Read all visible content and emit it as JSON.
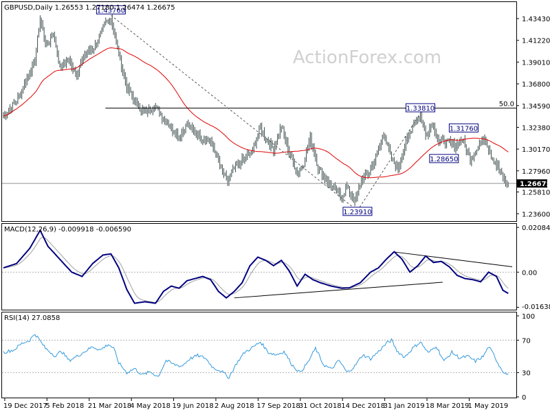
{
  "chart_data": [
    {
      "type": "ohlc",
      "panel": "price",
      "symbol_line": "GBPUSD,Daily  1.26553 1.27180 1.26474 1.26675",
      "watermark": "ActionForex.com",
      "ylim": [
        1.2292,
        1.4504
      ],
      "y_ticks": [
        "1.43430",
        "1.41220",
        "1.39010",
        "1.36800",
        "1.34590",
        "1.32380",
        "1.30170",
        "1.27960",
        "1.25810",
        "1.23600"
      ],
      "x_ticks": [
        "19 Dec 2017",
        "5 Feb 2018",
        "21 Mar 2018",
        "4 May 2018",
        "19 Jun 2018",
        "2 Aug 2018",
        "17 Sep 2018",
        "31 Oct 2018",
        "14 Dec 2018",
        "31 Jan 2019",
        "18 Mar 2019",
        "1 May 2019"
      ],
      "current_price": "1.26675",
      "fib_level_label": "50.0",
      "fib_level_value": 1.3434,
      "close_path": [
        {
          "d": 0,
          "c": 1.335
        },
        {
          "d": 10,
          "c": 1.351
        },
        {
          "d": 18,
          "c": 1.373
        },
        {
          "d": 24,
          "c": 1.392
        },
        {
          "d": 28,
          "c": 1.435
        },
        {
          "d": 33,
          "c": 1.405
        },
        {
          "d": 38,
          "c": 1.421
        },
        {
          "d": 43,
          "c": 1.385
        },
        {
          "d": 50,
          "c": 1.392
        },
        {
          "d": 56,
          "c": 1.377
        },
        {
          "d": 62,
          "c": 1.398
        },
        {
          "d": 70,
          "c": 1.406
        },
        {
          "d": 78,
          "c": 1.43
        },
        {
          "d": 82,
          "c": 1.435
        },
        {
          "d": 86,
          "c": 1.41
        },
        {
          "d": 90,
          "c": 1.387
        },
        {
          "d": 94,
          "c": 1.365
        },
        {
          "d": 100,
          "c": 1.35
        },
        {
          "d": 108,
          "c": 1.338
        },
        {
          "d": 115,
          "c": 1.346
        },
        {
          "d": 122,
          "c": 1.333
        },
        {
          "d": 128,
          "c": 1.323
        },
        {
          "d": 134,
          "c": 1.315
        },
        {
          "d": 140,
          "c": 1.327
        },
        {
          "d": 146,
          "c": 1.318
        },
        {
          "d": 152,
          "c": 1.312
        },
        {
          "d": 158,
          "c": 1.31
        },
        {
          "d": 162,
          "c": 1.296
        },
        {
          "d": 167,
          "c": 1.278
        },
        {
          "d": 171,
          "c": 1.268
        },
        {
          "d": 176,
          "c": 1.283
        },
        {
          "d": 183,
          "c": 1.291
        },
        {
          "d": 190,
          "c": 1.3
        },
        {
          "d": 196,
          "c": 1.324
        },
        {
          "d": 201,
          "c": 1.31
        },
        {
          "d": 206,
          "c": 1.302
        },
        {
          "d": 212,
          "c": 1.325
        },
        {
          "d": 218,
          "c": 1.298
        },
        {
          "d": 224,
          "c": 1.278
        },
        {
          "d": 229,
          "c": 1.287
        },
        {
          "d": 234,
          "c": 1.313
        },
        {
          "d": 240,
          "c": 1.283
        },
        {
          "d": 246,
          "c": 1.271
        },
        {
          "d": 252,
          "c": 1.261
        },
        {
          "d": 258,
          "c": 1.253
        },
        {
          "d": 262,
          "c": 1.263
        },
        {
          "d": 268,
          "c": 1.248
        },
        {
          "d": 273,
          "c": 1.27
        },
        {
          "d": 279,
          "c": 1.278
        },
        {
          "d": 285,
          "c": 1.296
        },
        {
          "d": 290,
          "c": 1.318
        },
        {
          "d": 296,
          "c": 1.291
        },
        {
          "d": 301,
          "c": 1.283
        },
        {
          "d": 307,
          "c": 1.307
        },
        {
          "d": 313,
          "c": 1.329
        },
        {
          "d": 318,
          "c": 1.335
        },
        {
          "d": 322,
          "c": 1.316
        },
        {
          "d": 327,
          "c": 1.327
        },
        {
          "d": 332,
          "c": 1.31
        },
        {
          "d": 338,
          "c": 1.309
        },
        {
          "d": 344,
          "c": 1.305
        },
        {
          "d": 350,
          "c": 1.312
        },
        {
          "d": 356,
          "c": 1.292
        },
        {
          "d": 362,
          "c": 1.304
        },
        {
          "d": 367,
          "c": 1.314
        },
        {
          "d": 372,
          "c": 1.295
        },
        {
          "d": 378,
          "c": 1.281
        },
        {
          "d": 382,
          "c": 1.269
        },
        {
          "d": 385,
          "c": 1.266
        }
      ],
      "annotations": [
        {
          "label": "1.43760",
          "d": 82,
          "price": 1.4376
        },
        {
          "label": "1.23910",
          "d": 270,
          "price": 1.2391
        },
        {
          "label": "1.33810",
          "d": 318,
          "price": 1.3381
        },
        {
          "label": "1.31760",
          "d": 351,
          "price": 1.3176
        },
        {
          "label": "1.28650",
          "d": 336,
          "price": 1.2865
        }
      ]
    },
    {
      "type": "line",
      "panel": "macd",
      "title": "MACD(12,26,9) -0.009918 -0.006590",
      "ylim": [
        -0.0175,
        0.0225
      ],
      "y_ticks": [
        "0.020848",
        "0.00",
        "-0.016389"
      ],
      "macd_path": [
        {
          "d": 0,
          "v": 0.002
        },
        {
          "d": 10,
          "v": 0.004
        },
        {
          "d": 20,
          "v": 0.011
        },
        {
          "d": 28,
          "v": 0.0195
        },
        {
          "d": 34,
          "v": 0.012
        },
        {
          "d": 40,
          "v": 0.008
        },
        {
          "d": 46,
          "v": 0.004
        },
        {
          "d": 52,
          "v": 0.0
        },
        {
          "d": 60,
          "v": -0.002
        },
        {
          "d": 68,
          "v": 0.004
        },
        {
          "d": 76,
          "v": 0.008
        },
        {
          "d": 82,
          "v": 0.0085
        },
        {
          "d": 88,
          "v": 0.002
        },
        {
          "d": 94,
          "v": -0.008
        },
        {
          "d": 100,
          "v": -0.0145
        },
        {
          "d": 108,
          "v": -0.0138
        },
        {
          "d": 116,
          "v": -0.0145
        },
        {
          "d": 122,
          "v": -0.009
        },
        {
          "d": 128,
          "v": -0.0065
        },
        {
          "d": 134,
          "v": -0.0075
        },
        {
          "d": 140,
          "v": -0.004
        },
        {
          "d": 146,
          "v": -0.003
        },
        {
          "d": 152,
          "v": -0.002
        },
        {
          "d": 158,
          "v": -0.0035
        },
        {
          "d": 164,
          "v": -0.009
        },
        {
          "d": 170,
          "v": -0.012
        },
        {
          "d": 176,
          "v": -0.009
        },
        {
          "d": 182,
          "v": -0.005
        },
        {
          "d": 188,
          "v": 0.003
        },
        {
          "d": 194,
          "v": 0.007
        },
        {
          "d": 200,
          "v": 0.0055
        },
        {
          "d": 206,
          "v": 0.003
        },
        {
          "d": 212,
          "v": 0.0055
        },
        {
          "d": 218,
          "v": 0.0005
        },
        {
          "d": 224,
          "v": -0.0065
        },
        {
          "d": 230,
          "v": -0.001
        },
        {
          "d": 236,
          "v": -0.0035
        },
        {
          "d": 242,
          "v": -0.005
        },
        {
          "d": 250,
          "v": -0.0065
        },
        {
          "d": 258,
          "v": -0.0075
        },
        {
          "d": 264,
          "v": -0.0073
        },
        {
          "d": 272,
          "v": -0.005
        },
        {
          "d": 280,
          "v": 0.0
        },
        {
          "d": 286,
          "v": 0.002
        },
        {
          "d": 292,
          "v": 0.006
        },
        {
          "d": 298,
          "v": 0.0095
        },
        {
          "d": 304,
          "v": 0.006
        },
        {
          "d": 310,
          "v": 0.0
        },
        {
          "d": 316,
          "v": 0.003
        },
        {
          "d": 322,
          "v": 0.0075
        },
        {
          "d": 328,
          "v": 0.0045
        },
        {
          "d": 334,
          "v": 0.005
        },
        {
          "d": 340,
          "v": 0.0025
        },
        {
          "d": 346,
          "v": -0.0015
        },
        {
          "d": 352,
          "v": -0.003
        },
        {
          "d": 358,
          "v": -0.0035
        },
        {
          "d": 364,
          "v": -0.0045
        },
        {
          "d": 370,
          "v": 0.0
        },
        {
          "d": 376,
          "v": -0.002
        },
        {
          "d": 381,
          "v": -0.0085
        },
        {
          "d": 385,
          "v": -0.0099
        }
      ],
      "trendlines": [
        {
          "d1": 298,
          "v1": 0.0094,
          "d2": 388,
          "v2": 0.0025
        },
        {
          "d1": 176,
          "v1": -0.012,
          "d2": 335,
          "v2": -0.0047
        }
      ]
    },
    {
      "type": "line",
      "panel": "rsi",
      "title": "RSI(14) 27.0858",
      "ylim": [
        0,
        100
      ],
      "y_ticks": [
        "100",
        "70",
        "30",
        "0"
      ],
      "rsi_path": [
        {
          "d": 0,
          "v": 55
        },
        {
          "d": 8,
          "v": 58
        },
        {
          "d": 14,
          "v": 66
        },
        {
          "d": 20,
          "v": 70
        },
        {
          "d": 24,
          "v": 78
        },
        {
          "d": 28,
          "v": 69
        },
        {
          "d": 32,
          "v": 60
        },
        {
          "d": 36,
          "v": 55
        },
        {
          "d": 40,
          "v": 50
        },
        {
          "d": 44,
          "v": 57
        },
        {
          "d": 50,
          "v": 45
        },
        {
          "d": 56,
          "v": 50
        },
        {
          "d": 62,
          "v": 56
        },
        {
          "d": 68,
          "v": 62
        },
        {
          "d": 74,
          "v": 58
        },
        {
          "d": 80,
          "v": 65
        },
        {
          "d": 84,
          "v": 60
        },
        {
          "d": 88,
          "v": 42
        },
        {
          "d": 94,
          "v": 30
        },
        {
          "d": 100,
          "v": 35
        },
        {
          "d": 106,
          "v": 27
        },
        {
          "d": 112,
          "v": 31
        },
        {
          "d": 118,
          "v": 25
        },
        {
          "d": 124,
          "v": 45
        },
        {
          "d": 130,
          "v": 40
        },
        {
          "d": 136,
          "v": 38
        },
        {
          "d": 142,
          "v": 47
        },
        {
          "d": 148,
          "v": 51
        },
        {
          "d": 154,
          "v": 48
        },
        {
          "d": 160,
          "v": 36
        },
        {
          "d": 166,
          "v": 32
        },
        {
          "d": 172,
          "v": 24
        },
        {
          "d": 178,
          "v": 42
        },
        {
          "d": 184,
          "v": 55
        },
        {
          "d": 190,
          "v": 61
        },
        {
          "d": 196,
          "v": 68
        },
        {
          "d": 202,
          "v": 55
        },
        {
          "d": 208,
          "v": 52
        },
        {
          "d": 214,
          "v": 56
        },
        {
          "d": 220,
          "v": 40
        },
        {
          "d": 226,
          "v": 30
        },
        {
          "d": 232,
          "v": 42
        },
        {
          "d": 238,
          "v": 60
        },
        {
          "d": 244,
          "v": 40
        },
        {
          "d": 250,
          "v": 34
        },
        {
          "d": 256,
          "v": 45
        },
        {
          "d": 262,
          "v": 30
        },
        {
          "d": 268,
          "v": 38
        },
        {
          "d": 274,
          "v": 52
        },
        {
          "d": 280,
          "v": 47
        },
        {
          "d": 286,
          "v": 56
        },
        {
          "d": 292,
          "v": 66
        },
        {
          "d": 296,
          "v": 70
        },
        {
          "d": 300,
          "v": 57
        },
        {
          "d": 306,
          "v": 49
        },
        {
          "d": 312,
          "v": 60
        },
        {
          "d": 318,
          "v": 68
        },
        {
          "d": 324,
          "v": 54
        },
        {
          "d": 330,
          "v": 63
        },
        {
          "d": 336,
          "v": 44
        },
        {
          "d": 342,
          "v": 55
        },
        {
          "d": 348,
          "v": 48
        },
        {
          "d": 354,
          "v": 50
        },
        {
          "d": 360,
          "v": 44
        },
        {
          "d": 366,
          "v": 50
        },
        {
          "d": 370,
          "v": 62
        },
        {
          "d": 374,
          "v": 52
        },
        {
          "d": 378,
          "v": 39
        },
        {
          "d": 382,
          "v": 30
        },
        {
          "d": 385,
          "v": 27
        }
      ]
    }
  ],
  "colors": {
    "background": "#ffffff",
    "bars": "#3a4a4a",
    "sma": "#e00000",
    "macd": "#000080",
    "signal": "#a0a0a0",
    "rsi": "#3399dd",
    "dashed": "#555555",
    "label_box": "#000080",
    "grid": "#b0b0b0"
  }
}
